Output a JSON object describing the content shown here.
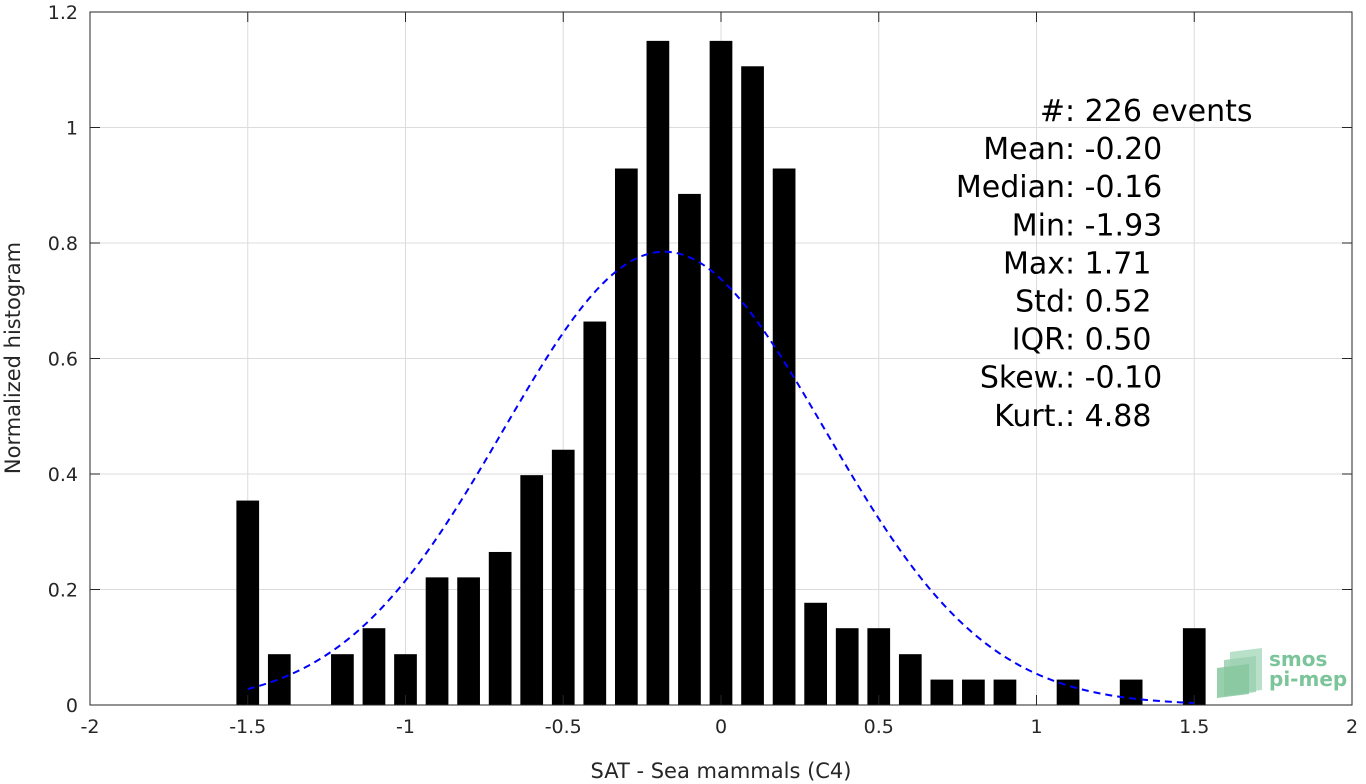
{
  "chart_data": {
    "type": "bar",
    "xlabel": "SAT - Sea mammals (C4)",
    "ylabel": "Normalized histogram",
    "xlim": [
      -2,
      2
    ],
    "ylim": [
      0,
      1.2
    ],
    "grid": true,
    "xticks": [
      "-2",
      "-1.5",
      "-1",
      "-0.5",
      "0",
      "0.5",
      "1",
      "1.5",
      "2"
    ],
    "xtick_values": [
      -2,
      -1.5,
      -1,
      -0.5,
      0,
      0.5,
      1,
      1.5,
      2
    ],
    "yticks": [
      "0",
      "0.2",
      "0.4",
      "0.6",
      "0.8",
      "1",
      "1.2"
    ],
    "ytick_values": [
      0,
      0.2,
      0.4,
      0.6,
      0.8,
      1.0,
      1.2
    ],
    "bar_color": "#000000",
    "bins": [
      -1.5,
      -1.4,
      -1.2,
      -1.1,
      -1.0,
      -0.9,
      -0.8,
      -0.7,
      -0.6,
      -0.5,
      -0.4,
      -0.3,
      -0.2,
      -0.1,
      0.0,
      0.1,
      0.2,
      0.3,
      0.4,
      0.5,
      0.6,
      0.7,
      0.8,
      0.9,
      1.1,
      1.3,
      1.5
    ],
    "values": [
      0.354,
      0.088,
      0.088,
      0.133,
      0.088,
      0.221,
      0.221,
      0.265,
      0.398,
      0.442,
      0.664,
      0.929,
      1.15,
      0.885,
      1.15,
      1.106,
      0.929,
      0.177,
      0.133,
      0.133,
      0.088,
      0.044,
      0.044,
      0.044,
      0.044,
      0.044,
      0.133
    ],
    "fit_curve": {
      "style": "dashed",
      "color": "#0000ff",
      "x_range": [
        -1.5,
        1.5
      ],
      "mean": -0.18,
      "std": 0.51,
      "peak": 0.785
    },
    "stats": [
      {
        "label": "#  ",
        "value": ": 226 events"
      },
      {
        "label": "Mean ",
        "value": ": -0.20"
      },
      {
        "label": "Median ",
        "value": ": -0.16"
      },
      {
        "label": "Min ",
        "value": ": -1.93"
      },
      {
        "label": "Max ",
        "value": ": 1.71"
      },
      {
        "label": "Std ",
        "value": ": 0.52"
      },
      {
        "label": "IQR ",
        "value": ": 0.50"
      },
      {
        "label": "Skew. ",
        "value": ": -0.10"
      },
      {
        "label": "Kurt. ",
        "value": ": 4.88"
      }
    ]
  },
  "logo": {
    "line1": "smos",
    "line2": "pi-mep",
    "color": "#7cc49a"
  }
}
